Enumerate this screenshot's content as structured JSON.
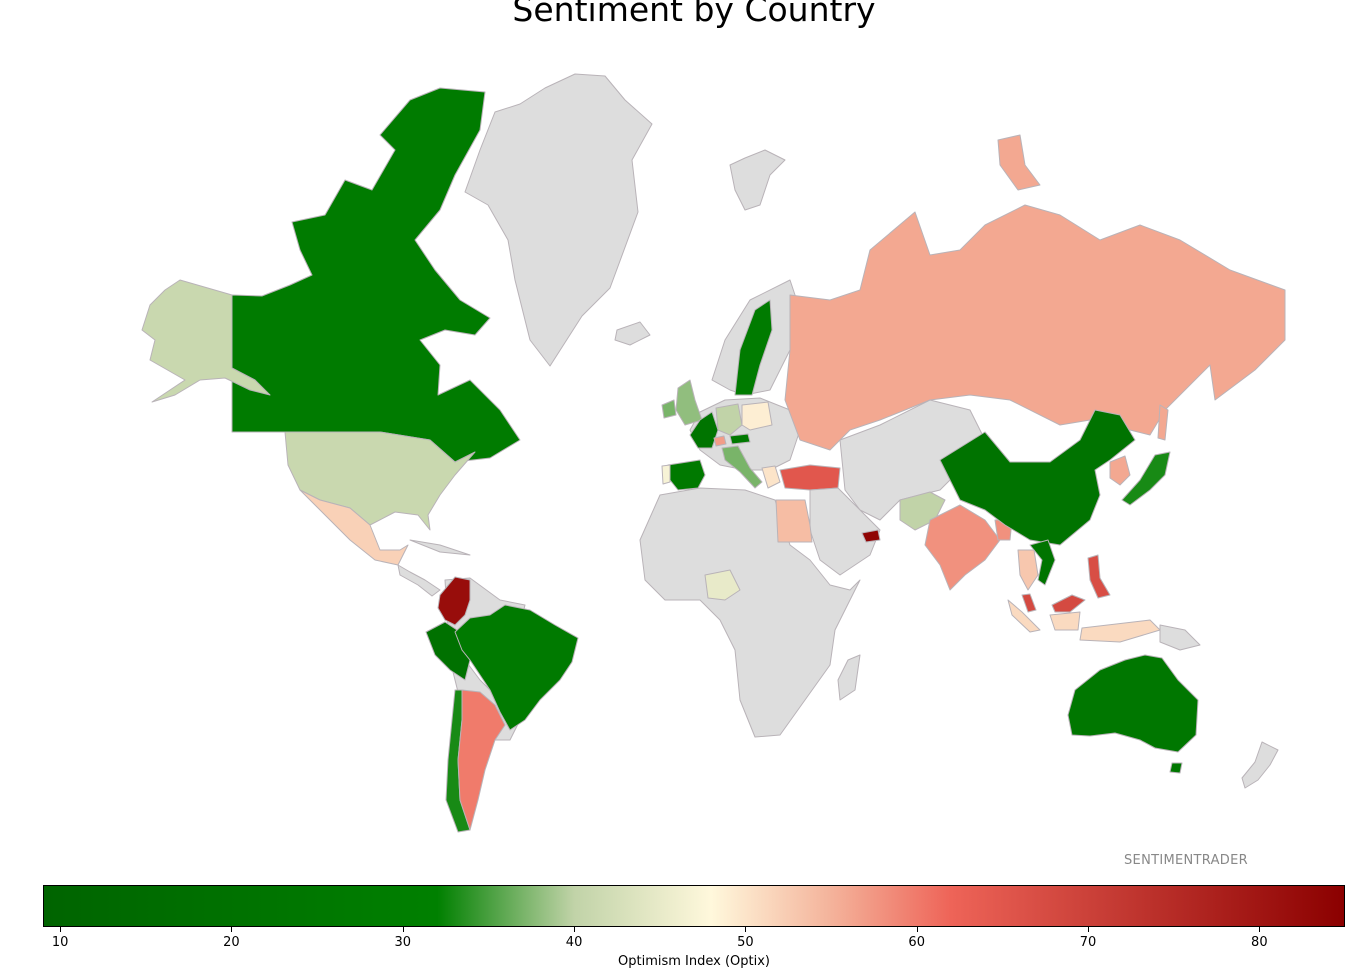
{
  "title": "Sentiment by Country",
  "watermark": "SENTIMENTRADER",
  "colorbar": {
    "label": "Optimism Index (Optix)",
    "min": 9,
    "max": 85,
    "ticks": [
      10,
      20,
      30,
      40,
      50,
      60,
      70,
      80
    ],
    "stops": [
      {
        "value": 9,
        "color": "#006400"
      },
      {
        "value": 32,
        "color": "#008000"
      },
      {
        "value": 40,
        "color": "#c1d3a8"
      },
      {
        "value": 48,
        "color": "#fff8dc"
      },
      {
        "value": 55,
        "color": "#f4b39b"
      },
      {
        "value": 62,
        "color": "#ee6458"
      },
      {
        "value": 85,
        "color": "#8b0000"
      }
    ]
  },
  "colors": {
    "no_data": "#dddddd",
    "border": "#b9b3b8"
  },
  "chart_data": {
    "type": "choropleth",
    "metric": "Optimism Index (Optix)",
    "countries": [
      {
        "name": "Canada",
        "value": 28
      },
      {
        "name": "United States",
        "value": 41
      },
      {
        "name": "Alaska",
        "value": 41
      },
      {
        "name": "Mexico",
        "value": 52
      },
      {
        "name": "Colombia",
        "value": 82
      },
      {
        "name": "Peru",
        "value": 20
      },
      {
        "name": "Brazil",
        "value": 27
      },
      {
        "name": "Chile",
        "value": 33
      },
      {
        "name": "Argentina",
        "value": 60
      },
      {
        "name": "Sweden",
        "value": 28
      },
      {
        "name": "United Kingdom",
        "value": 38
      },
      {
        "name": "Ireland",
        "value": 37
      },
      {
        "name": "France",
        "value": 22
      },
      {
        "name": "Germany",
        "value": 40
      },
      {
        "name": "Poland",
        "value": 49
      },
      {
        "name": "Switzerland",
        "value": 57
      },
      {
        "name": "Austria",
        "value": 26
      },
      {
        "name": "Italy",
        "value": 37
      },
      {
        "name": "Spain",
        "value": 26
      },
      {
        "name": "Portugal",
        "value": 47
      },
      {
        "name": "Greece",
        "value": 50
      },
      {
        "name": "Turkey",
        "value": 65
      },
      {
        "name": "Russia",
        "value": 56
      },
      {
        "name": "Egypt",
        "value": 54
      },
      {
        "name": "United Arab Emirates",
        "value": 84
      },
      {
        "name": "Pakistan",
        "value": 40
      },
      {
        "name": "India",
        "value": 58
      },
      {
        "name": "Bangladesh",
        "value": 58
      },
      {
        "name": "China",
        "value": 21
      },
      {
        "name": "Japan",
        "value": 33
      },
      {
        "name": "South Korea",
        "value": 56
      },
      {
        "name": "Vietnam",
        "value": 22
      },
      {
        "name": "Thailand",
        "value": 53
      },
      {
        "name": "Malaysia",
        "value": 68
      },
      {
        "name": "Philippines",
        "value": 67
      },
      {
        "name": "Indonesia",
        "value": 51
      },
      {
        "name": "Nigeria",
        "value": 45
      },
      {
        "name": "Australia",
        "value": 25
      }
    ]
  }
}
